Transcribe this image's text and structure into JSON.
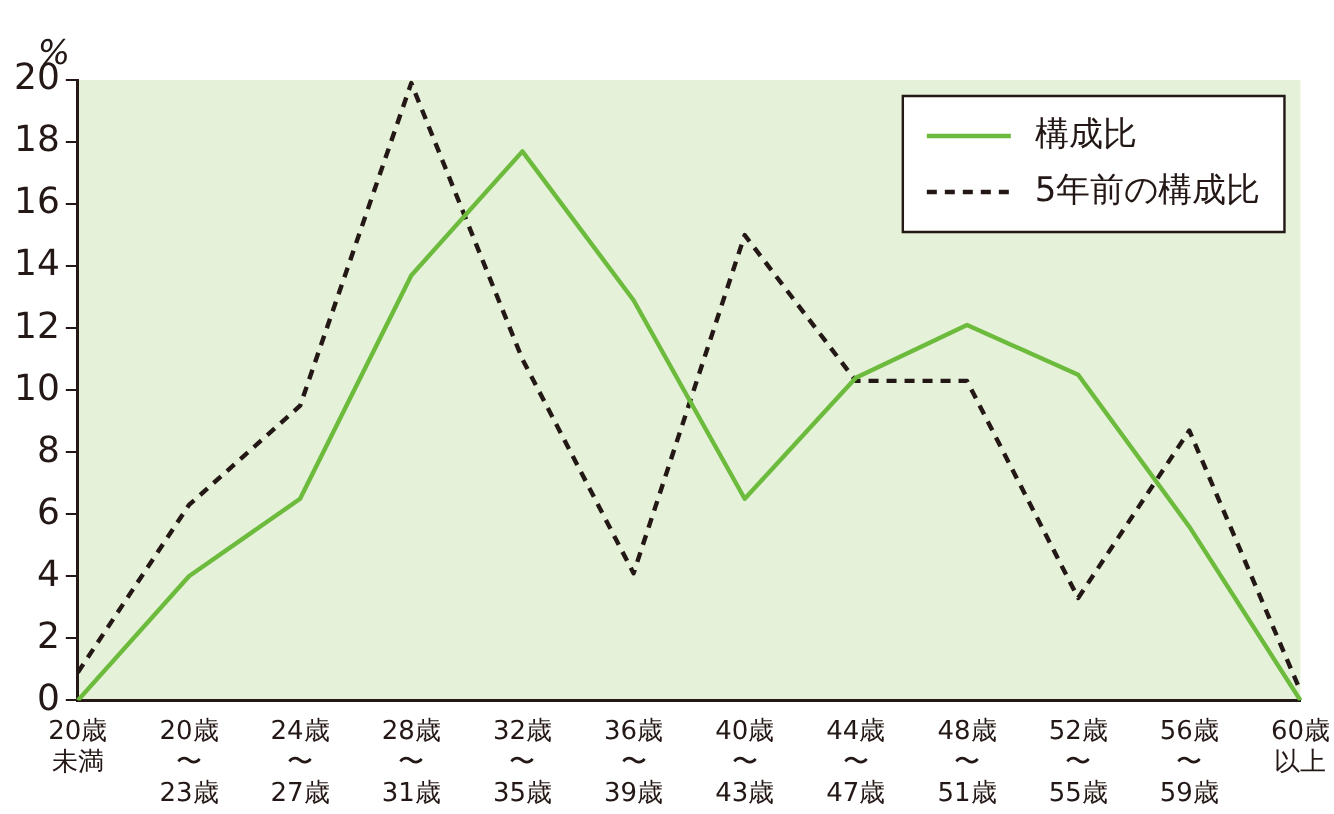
{
  "chart_data": {
    "type": "line",
    "ylabel": "%",
    "categories": [
      "20歳未満",
      "20歳〜23歳",
      "24歳〜27歳",
      "28歳〜31歳",
      "32歳〜35歳",
      "36歳〜39歳",
      "40歳〜43歳",
      "44歳〜47歳",
      "48歳〜51歳",
      "52歳〜55歳",
      "56歳〜59歳",
      "60歳以上"
    ],
    "series": [
      {
        "name": "構成比",
        "color": "#6cbb3c",
        "line_style": "solid",
        "values": [
          0,
          4.0,
          6.5,
          13.7,
          17.7,
          12.9,
          6.5,
          10.4,
          12.1,
          10.5,
          5.6,
          0
        ]
      },
      {
        "name": "5年前の構成比",
        "color": "#231815",
        "line_style": "dashed",
        "values": [
          0.9,
          6.3,
          9.5,
          19.9,
          11.0,
          4.1,
          15.0,
          10.3,
          10.3,
          3.3,
          8.7,
          0.3
        ]
      }
    ],
    "ylim": [
      0,
      20
    ],
    "yticks": [
      0,
      2,
      4,
      6,
      8,
      10,
      12,
      14,
      16,
      18,
      20
    ],
    "grid": false,
    "legend": "top right",
    "marker": "none"
  }
}
